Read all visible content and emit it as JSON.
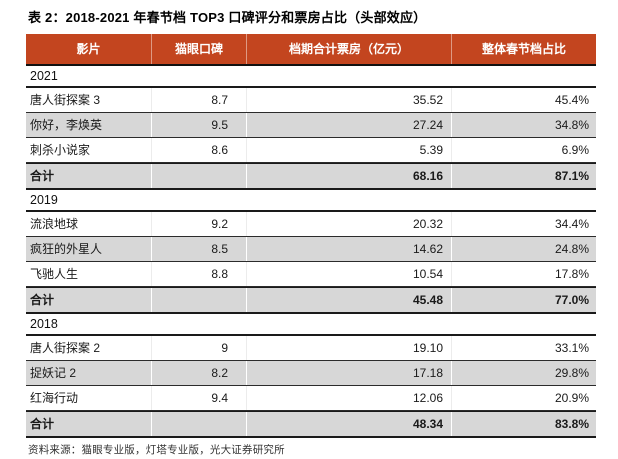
{
  "title": "表 2：2018-2021 年春节档 TOP3 口碑评分和票房占比（头部效应）",
  "table": {
    "columns": [
      "影片",
      "猫眼口碑",
      "档期合计票房（亿元）",
      "整体春节档占比"
    ],
    "sections": [
      {
        "year": "2021",
        "rows": [
          {
            "film": "唐人街探案 3",
            "rating": "8.7",
            "box_office": "35.52",
            "share": "45.4%",
            "shaded": false,
            "total": false
          },
          {
            "film": "你好，李焕英",
            "rating": "9.5",
            "box_office": "27.24",
            "share": "34.8%",
            "shaded": true,
            "total": false
          },
          {
            "film": "刺杀小说家",
            "rating": "8.6",
            "box_office": "5.39",
            "share": "6.9%",
            "shaded": false,
            "total": false
          },
          {
            "film": "合计",
            "rating": "",
            "box_office": "68.16",
            "share": "87.1%",
            "shaded": true,
            "total": true
          }
        ]
      },
      {
        "year": "2019",
        "rows": [
          {
            "film": "流浪地球",
            "rating": "9.2",
            "box_office": "20.32",
            "share": "34.4%",
            "shaded": false,
            "total": false
          },
          {
            "film": "疯狂的外星人",
            "rating": "8.5",
            "box_office": "14.62",
            "share": "24.8%",
            "shaded": true,
            "total": false
          },
          {
            "film": "飞驰人生",
            "rating": "8.8",
            "box_office": "10.54",
            "share": "17.8%",
            "shaded": false,
            "total": false
          },
          {
            "film": "合计",
            "rating": "",
            "box_office": "45.48",
            "share": "77.0%",
            "shaded": true,
            "total": true
          }
        ]
      },
      {
        "year": "2018",
        "rows": [
          {
            "film": "唐人街探案 2",
            "rating": "9",
            "box_office": "19.10",
            "share": "33.1%",
            "shaded": false,
            "total": false
          },
          {
            "film": "捉妖记 2",
            "rating": "8.2",
            "box_office": "17.18",
            "share": "29.8%",
            "shaded": true,
            "total": false
          },
          {
            "film": "红海行动",
            "rating": "9.4",
            "box_office": "12.06",
            "share": "20.9%",
            "shaded": false,
            "total": false
          },
          {
            "film": "合计",
            "rating": "",
            "box_office": "48.34",
            "share": "83.8%",
            "shaded": true,
            "total": true
          }
        ]
      }
    ]
  },
  "footer": "资料来源：猫眼专业版，灯塔专业版，光大证券研究所",
  "colors": {
    "header_bg": "#C3451F",
    "header_text": "#FFFFFF",
    "shaded_row": "#D7D7D7",
    "border_dark": "#1A1A1A"
  }
}
